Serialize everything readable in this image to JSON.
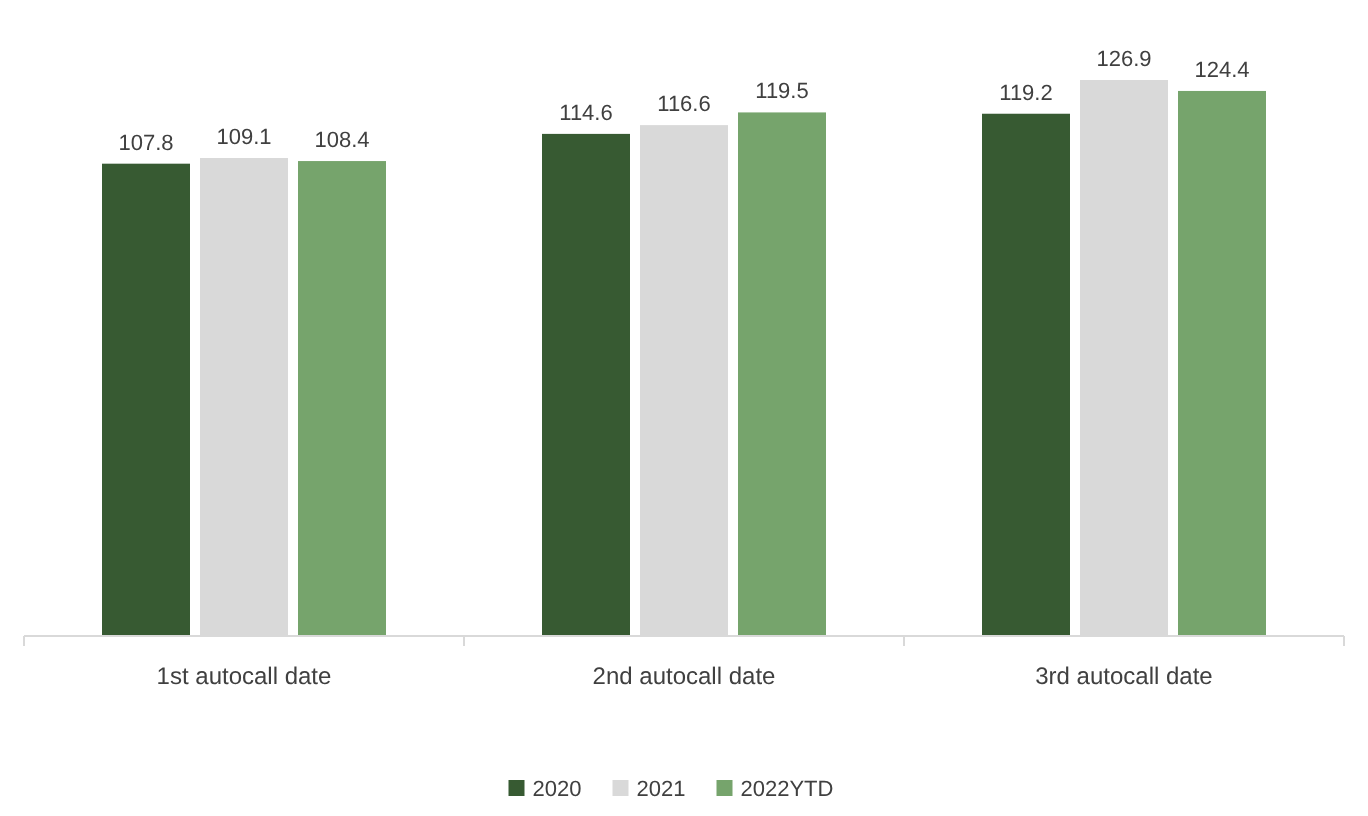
{
  "chart_data": {
    "type": "bar",
    "categories": [
      "1st autocall date",
      "2nd autocall date",
      "3rd autocall date"
    ],
    "series": [
      {
        "name": "2020",
        "color": "#375a32",
        "values": [
          107.8,
          114.6,
          119.2
        ]
      },
      {
        "name": "2021",
        "color": "#d9d9d9",
        "values": [
          109.1,
          116.6,
          126.9
        ]
      },
      {
        "name": "2022YTD",
        "color": "#76a46c",
        "values": [
          108.4,
          119.5,
          124.4
        ]
      }
    ],
    "data_labels": true,
    "legend": "bottom",
    "grid": false
  }
}
